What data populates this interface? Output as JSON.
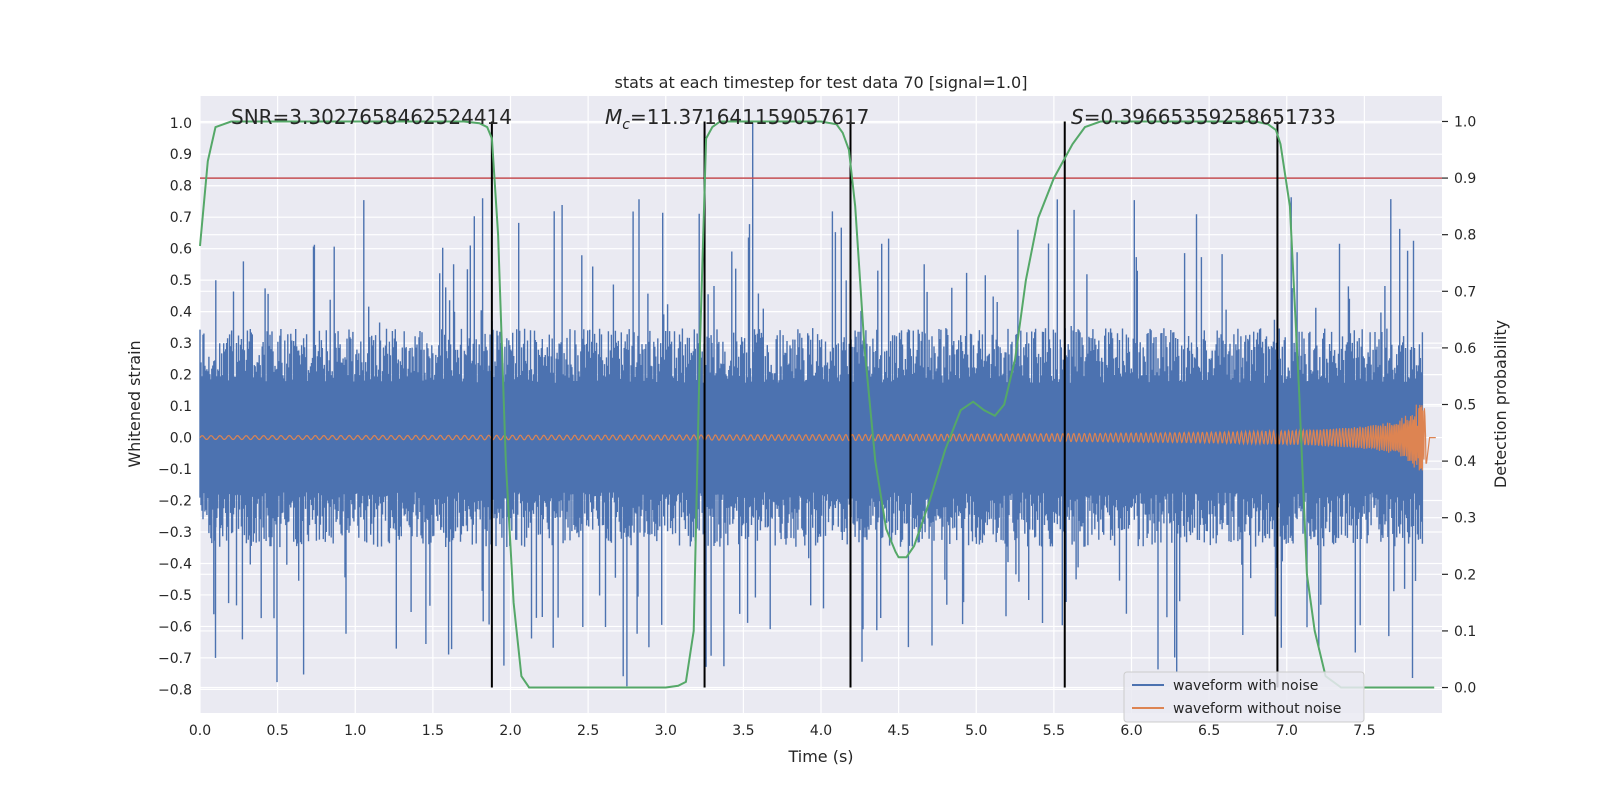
{
  "chart_data": {
    "type": "line",
    "title": "stats at each timestep for test data 70 [signal=1.0]",
    "xlabel": "Time (s)",
    "ylabel": "Whitened strain",
    "ylabel_right": "Detection probability",
    "xlim": [
      0.0,
      8.0
    ],
    "ylim": [
      -0.875,
      1.085
    ],
    "ylim_right": [
      -0.045,
      1.045
    ],
    "x_ticks": [
      "0.0",
      "0.5",
      "1.0",
      "1.5",
      "2.0",
      "2.5",
      "3.0",
      "3.5",
      "4.0",
      "4.5",
      "5.0",
      "5.5",
      "6.0",
      "6.5",
      "7.0",
      "7.5"
    ],
    "y_ticks": [
      "1.0",
      "0.9",
      "0.8",
      "0.7",
      "0.6",
      "0.5",
      "0.4",
      "0.3",
      "0.2",
      "0.1",
      "0.0",
      "−0.1",
      "−0.2",
      "−0.3",
      "−0.4",
      "−0.5",
      "−0.6",
      "−0.7",
      "−0.8"
    ],
    "y_ticks_right": [
      "1.0",
      "0.9",
      "0.8",
      "0.7",
      "0.6",
      "0.5",
      "0.4",
      "0.3",
      "0.2",
      "0.1",
      "0.0"
    ],
    "annotations": {
      "snr": "SNR=3.3027658462524414",
      "mc_symbol": "M",
      "mc_sub": "c",
      "mc_value": "=11.371641159057617",
      "s_symbol": "S",
      "s_value": "=0.39665359258651733"
    },
    "series": [
      {
        "name": "waveform with noise",
        "color": "#4c72b0",
        "noise_band": [
          -0.29,
          0.29
        ],
        "spike_max": 1.0,
        "spike_min": -0.79
      },
      {
        "name": "waveform without noise",
        "color": "#dd8452",
        "amplitude_start": 0.006,
        "amplitude_peak": 0.105,
        "merger_time": 7.9
      },
      {
        "name": "detection probability",
        "color": "#55a868",
        "axis": "right",
        "x": [
          0.0,
          0.05,
          0.1,
          0.2,
          1.7,
          1.8,
          1.85,
          1.88,
          1.92,
          1.97,
          2.02,
          2.07,
          2.12,
          2.2,
          3.0,
          3.08,
          3.13,
          3.18,
          3.22,
          3.26,
          3.3,
          3.35,
          4.0,
          4.1,
          4.14,
          4.18,
          4.22,
          4.28,
          4.35,
          4.42,
          4.48,
          4.5,
          4.55,
          4.6,
          4.7,
          4.8,
          4.9,
          4.98,
          5.05,
          5.12,
          5.18,
          5.25,
          5.32,
          5.4,
          5.5,
          5.56,
          5.62,
          5.7,
          5.8,
          6.8,
          6.88,
          6.93,
          6.96,
          7.02,
          7.08,
          7.13,
          7.18,
          7.25,
          7.35,
          7.95
        ],
        "values": [
          0.78,
          0.93,
          0.99,
          1.0,
          1.0,
          0.997,
          0.99,
          0.97,
          0.8,
          0.4,
          0.15,
          0.02,
          0.0,
          0.0,
          0.0,
          0.003,
          0.01,
          0.1,
          0.6,
          0.97,
          0.99,
          1.0,
          1.0,
          0.995,
          0.98,
          0.95,
          0.85,
          0.6,
          0.4,
          0.28,
          0.24,
          0.23,
          0.23,
          0.25,
          0.33,
          0.42,
          0.49,
          0.505,
          0.49,
          0.48,
          0.5,
          0.58,
          0.72,
          0.83,
          0.9,
          0.93,
          0.96,
          0.99,
          1.0,
          1.0,
          0.995,
          0.985,
          0.96,
          0.85,
          0.52,
          0.2,
          0.1,
          0.02,
          0.0,
          0.0
        ]
      }
    ],
    "threshold_right": 0.9,
    "threshold_color": "#c44e52",
    "vertical_markers": [
      1.88,
      3.25,
      4.19,
      5.57,
      6.94
    ],
    "legend": {
      "placement": "bottom-right",
      "entries": [
        "waveform with noise",
        "waveform without noise"
      ]
    }
  }
}
